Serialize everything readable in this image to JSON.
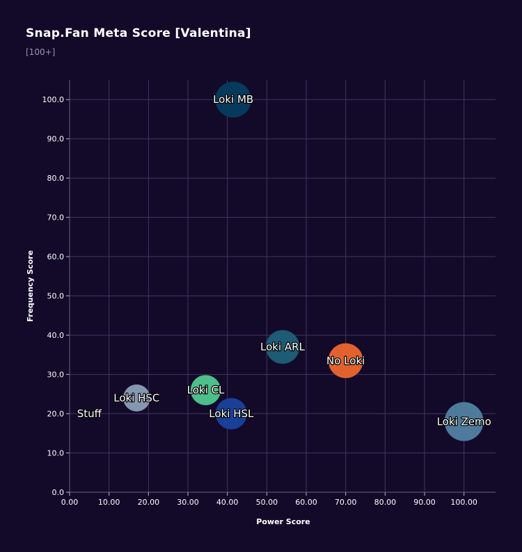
{
  "header": {
    "title": "Snap.Fan Meta Score [Valentina]",
    "subtitle": "[100+]"
  },
  "chart_data": {
    "type": "scatter",
    "title": "Snap.Fan Meta Score [Valentina]",
    "subtitle": "[100+]",
    "xlabel": "Power Score",
    "ylabel": "Frequency Score",
    "xlim": [
      0,
      108
    ],
    "ylim": [
      0,
      105
    ],
    "grid": true,
    "xticks": [
      "0.00",
      "10.00",
      "20.00",
      "30.00",
      "40.00",
      "50.00",
      "60.00",
      "70.00",
      "80.00",
      "90.00",
      "100.00"
    ],
    "yticks": [
      "0.0",
      "10.0",
      "20.0",
      "30.0",
      "40.0",
      "50.0",
      "60.0",
      "70.0",
      "80.0",
      "90.0",
      "100.0"
    ],
    "points": [
      {
        "name": "Loki MB",
        "x": 41.5,
        "y": 100.0,
        "size": 0.85,
        "color": "#053a5c"
      },
      {
        "name": "Loki ARL",
        "x": 54.0,
        "y": 37.0,
        "size": 0.75,
        "color": "#1e5b74"
      },
      {
        "name": "No Loki",
        "x": 70.0,
        "y": 33.5,
        "size": 0.8,
        "color": "#e2622f"
      },
      {
        "name": "Loki CL",
        "x": 34.5,
        "y": 26.0,
        "size": 0.6,
        "color": "#4cbf8a"
      },
      {
        "name": "Loki HSC",
        "x": 17.0,
        "y": 24.0,
        "size": 0.48,
        "color": "#8596b0"
      },
      {
        "name": "Loki HSL",
        "x": 41.0,
        "y": 20.0,
        "size": 0.65,
        "color": "#1a3f97"
      },
      {
        "name": "Stuff",
        "x": 5.0,
        "y": 20.0,
        "size": 0.0,
        "color": "#130a2a"
      },
      {
        "name": "Loki Zemo",
        "x": 100.0,
        "y": 18.0,
        "size": 1.0,
        "color": "#4e7b9c"
      }
    ]
  }
}
